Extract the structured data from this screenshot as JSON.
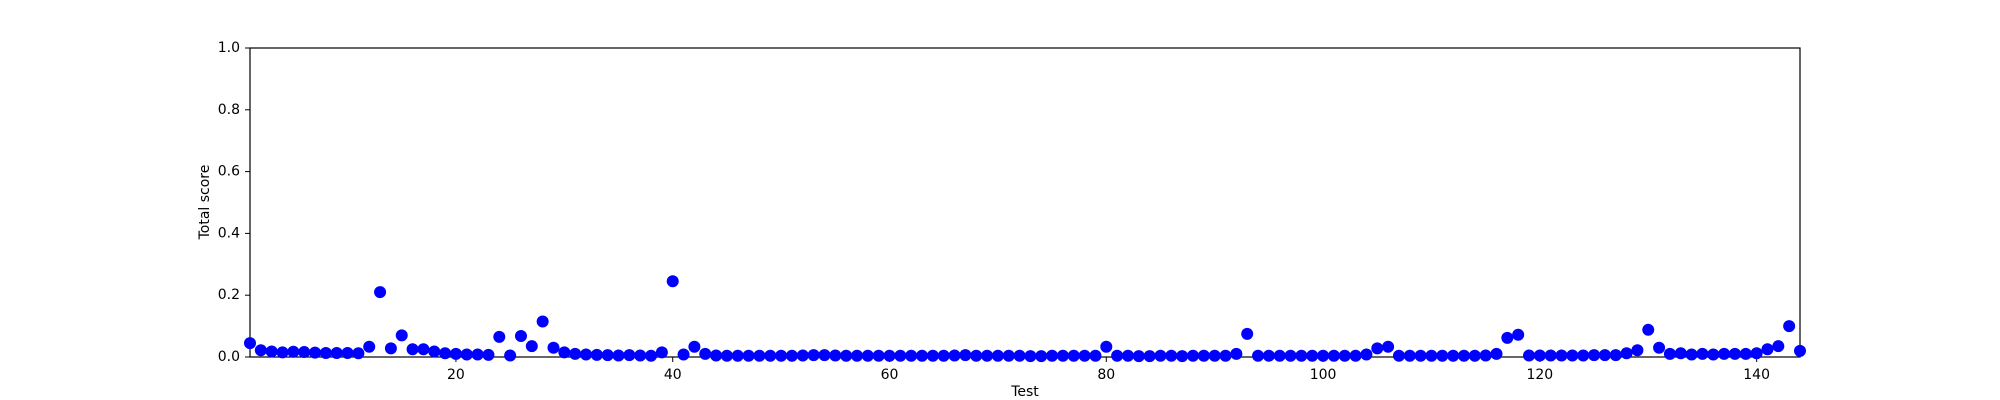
{
  "chart_data": {
    "type": "scatter",
    "x_label": "Test",
    "y_label": "Total score",
    "color": "#0000ff",
    "x": [
      1,
      2,
      3,
      4,
      5,
      6,
      7,
      8,
      9,
      10,
      11,
      12,
      13,
      14,
      15,
      16,
      17,
      18,
      19,
      20,
      21,
      22,
      23,
      24,
      25,
      26,
      27,
      28,
      29,
      30,
      31,
      32,
      33,
      34,
      35,
      36,
      37,
      38,
      39,
      40,
      41,
      42,
      43,
      44,
      45,
      46,
      47,
      48,
      49,
      50,
      51,
      52,
      53,
      54,
      55,
      56,
      57,
      58,
      59,
      60,
      61,
      62,
      63,
      64,
      65,
      66,
      67,
      68,
      69,
      70,
      71,
      72,
      73,
      74,
      75,
      76,
      77,
      78,
      79,
      80,
      81,
      82,
      83,
      84,
      85,
      86,
      87,
      88,
      89,
      90,
      91,
      92,
      93,
      94,
      95,
      96,
      97,
      98,
      99,
      100,
      101,
      102,
      103,
      104,
      105,
      106,
      107,
      108,
      109,
      110,
      111,
      112,
      113,
      114,
      115,
      116,
      117,
      118,
      119,
      120,
      121,
      122,
      123,
      124,
      125,
      126,
      127,
      128,
      129,
      130,
      131,
      132,
      133,
      134,
      135,
      136,
      137,
      138,
      139,
      140,
      141,
      142,
      143,
      144
    ],
    "values": [
      0.045,
      0.022,
      0.018,
      0.015,
      0.017,
      0.016,
      0.014,
      0.013,
      0.013,
      0.013,
      0.012,
      0.033,
      0.21,
      0.028,
      0.07,
      0.025,
      0.025,
      0.018,
      0.012,
      0.01,
      0.008,
      0.008,
      0.007,
      0.065,
      0.005,
      0.068,
      0.035,
      0.115,
      0.03,
      0.015,
      0.01,
      0.008,
      0.007,
      0.006,
      0.005,
      0.006,
      0.005,
      0.004,
      0.015,
      0.245,
      0.008,
      0.033,
      0.01,
      0.005,
      0.004,
      0.004,
      0.004,
      0.004,
      0.004,
      0.004,
      0.004,
      0.005,
      0.006,
      0.006,
      0.005,
      0.004,
      0.004,
      0.004,
      0.004,
      0.004,
      0.004,
      0.004,
      0.004,
      0.004,
      0.004,
      0.005,
      0.006,
      0.004,
      0.004,
      0.004,
      0.004,
      0.004,
      0.003,
      0.003,
      0.004,
      0.004,
      0.004,
      0.004,
      0.004,
      0.033,
      0.004,
      0.004,
      0.003,
      0.003,
      0.004,
      0.004,
      0.003,
      0.004,
      0.004,
      0.004,
      0.004,
      0.01,
      0.075,
      0.004,
      0.004,
      0.004,
      0.004,
      0.004,
      0.004,
      0.004,
      0.004,
      0.004,
      0.004,
      0.008,
      0.028,
      0.033,
      0.004,
      0.004,
      0.004,
      0.004,
      0.004,
      0.004,
      0.004,
      0.004,
      0.005,
      0.01,
      0.062,
      0.072,
      0.005,
      0.005,
      0.005,
      0.005,
      0.005,
      0.005,
      0.006,
      0.006,
      0.006,
      0.012,
      0.022,
      0.088,
      0.03,
      0.01,
      0.012,
      0.008,
      0.01,
      0.008,
      0.01,
      0.01,
      0.01,
      0.012,
      0.025,
      0.035,
      0.1,
      0.02
    ],
    "xlim": [
      1,
      144
    ],
    "xticks": [
      20,
      40,
      60,
      80,
      100,
      120,
      140
    ],
    "ylim": [
      0,
      1
    ],
    "yticks": [
      {
        "value": 0,
        "label": "0.0"
      },
      {
        "value": 0.2,
        "label": "0.2"
      },
      {
        "value": 0.4,
        "label": "0.4"
      },
      {
        "value": 0.6,
        "label": "0.6"
      },
      {
        "value": 0.8,
        "label": "0.8"
      },
      {
        "value": 1,
        "label": "1.0"
      }
    ]
  }
}
